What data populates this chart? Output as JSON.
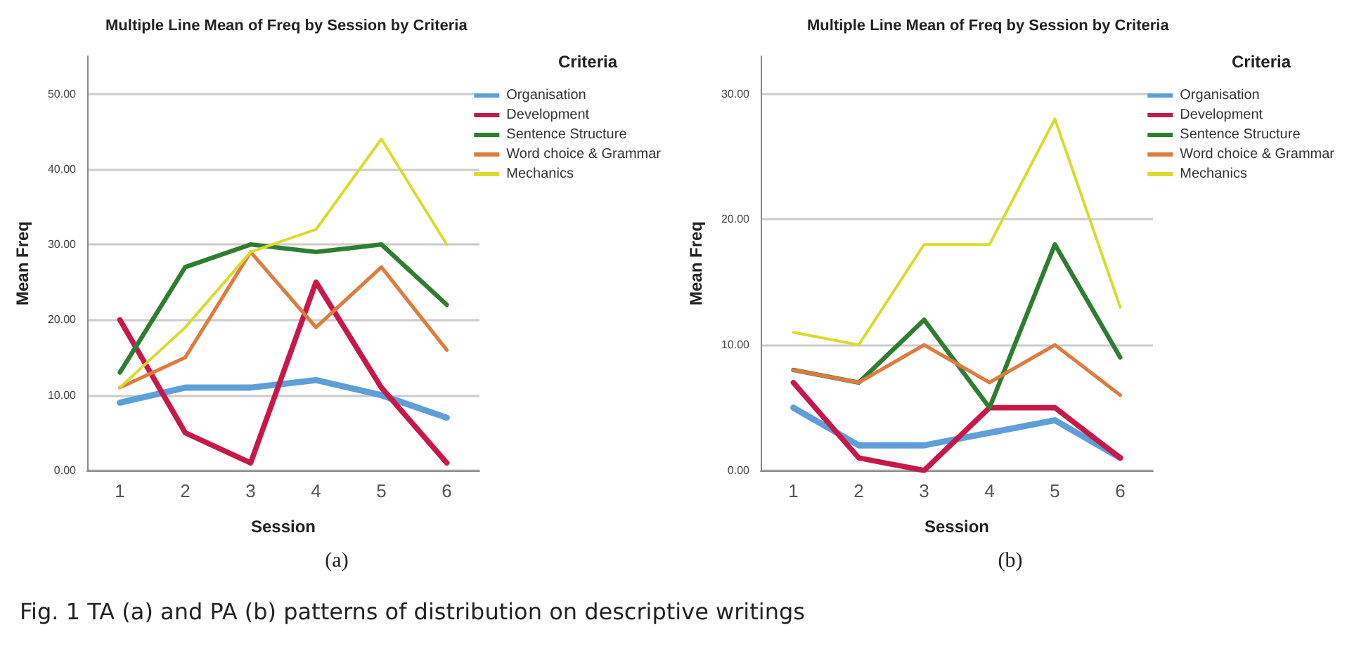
{
  "chart_data": [
    {
      "type": "line",
      "title": "Multiple Line Mean of Freq by Session by Criteria",
      "xlabel": "Session",
      "ylabel": "Mean Freq",
      "legend_title": "Criteria",
      "categories": [
        "1",
        "2",
        "3",
        "4",
        "5",
        "6"
      ],
      "series": [
        {
          "name": "Organisation",
          "color": "#5f9fd8",
          "values": [
            9,
            11,
            11,
            12,
            10,
            7
          ]
        },
        {
          "name": "Development",
          "color": "#c8184a",
          "values": [
            20,
            5,
            1,
            25,
            11,
            1
          ]
        },
        {
          "name": "Sentence Structure",
          "color": "#2f7d32",
          "values": [
            13,
            27,
            30,
            29,
            30,
            22
          ]
        },
        {
          "name": "Word choice & Grammar",
          "color": "#e07b40",
          "values": [
            11,
            15,
            29,
            19,
            27,
            16
          ]
        },
        {
          "name": "Mechanics",
          "color": "#d9dc2c",
          "values": [
            11,
            19,
            29,
            32,
            44,
            30
          ]
        }
      ],
      "ylim": [
        0,
        55
      ],
      "yticks": [
        {
          "value": 0,
          "label": "0.00"
        },
        {
          "value": 10,
          "label": "10.00"
        },
        {
          "value": 20,
          "label": "20.00"
        },
        {
          "value": 30,
          "label": "30.00"
        },
        {
          "value": 40,
          "label": "40.00"
        },
        {
          "value": 50,
          "label": "50.00"
        }
      ],
      "grid": "y",
      "legend": "top right",
      "marker": "none",
      "line_style": "solid",
      "annotations": [
        "(a)",
        "Fig. 1 TA (a) and PA (b) patterns of distribution on descriptive writings"
      ]
    },
    {
      "type": "line",
      "title": "Multiple Line Mean of Freq by Session by Criteria",
      "xlabel": "Session",
      "ylabel": "Mean Freq",
      "legend_title": "Criteria",
      "categories": [
        "1",
        "2",
        "3",
        "4",
        "5",
        "6"
      ],
      "series": [
        {
          "name": "Organisation",
          "color": "#5f9fd8",
          "values": [
            5,
            2,
            2,
            3,
            4,
            1
          ]
        },
        {
          "name": "Development",
          "color": "#c8184a",
          "values": [
            7,
            1,
            0,
            5,
            5,
            1
          ]
        },
        {
          "name": "Sentence Structure",
          "color": "#2f7d32",
          "values": [
            8,
            7,
            12,
            5,
            18,
            9
          ]
        },
        {
          "name": "Word choice & Grammar",
          "color": "#e07b40",
          "values": [
            8,
            7,
            10,
            7,
            10,
            6
          ]
        },
        {
          "name": "Mechanics",
          "color": "#d9dc2c",
          "values": [
            11,
            10,
            18,
            18,
            28,
            13
          ]
        }
      ],
      "ylim": [
        0,
        33
      ],
      "yticks": [
        {
          "value": 0,
          "label": "0.00"
        },
        {
          "value": 10,
          "label": "10.00"
        },
        {
          "value": 20,
          "label": "20.00"
        },
        {
          "value": 30,
          "label": "30.00"
        }
      ],
      "grid": "y",
      "legend": "top right",
      "marker": "none",
      "line_style": "solid",
      "annotations": [
        "(b)"
      ]
    }
  ]
}
